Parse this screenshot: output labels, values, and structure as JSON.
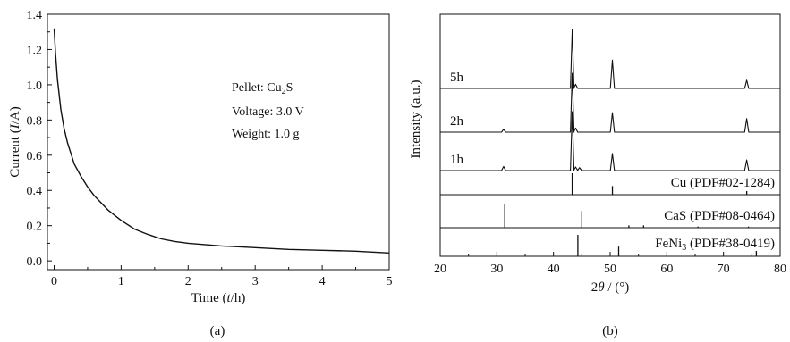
{
  "chart_data": [
    {
      "panel": "(a)",
      "type": "line",
      "xlabel_parts": [
        "Time (",
        "t",
        "/h)"
      ],
      "ylabel_parts": [
        "Current (",
        "I",
        "/A)"
      ],
      "xlim": [
        -0.1,
        5
      ],
      "ylim": [
        -0.05,
        1.4
      ],
      "xticks": [
        0,
        1,
        2,
        3,
        4,
        5
      ],
      "yticks": [
        0.0,
        0.2,
        0.4,
        0.6,
        0.8,
        1.0,
        1.2,
        1.4
      ],
      "ytick_labels": [
        "0.0",
        "0.2",
        "0.4",
        "0.6",
        "0.8",
        "1.0",
        "1.2",
        "1.4"
      ],
      "annotation": {
        "pellet_prefix": "Pellet: Cu",
        "pellet_sub": "2",
        "pellet_suffix": "S",
        "voltage": "Voltage: 3.0 V",
        "weight": "Weight: 1.0 g"
      },
      "series": [
        {
          "x": [
            0.0,
            0.02,
            0.05,
            0.1,
            0.15,
            0.2,
            0.3,
            0.4,
            0.5,
            0.6,
            0.7,
            0.8,
            0.9,
            1.0,
            1.2,
            1.4,
            1.6,
            1.8,
            2.0,
            2.5,
            3.0,
            3.5,
            4.0,
            4.5,
            5.0
          ],
          "y": [
            1.32,
            1.18,
            1.03,
            0.86,
            0.75,
            0.67,
            0.55,
            0.48,
            0.42,
            0.37,
            0.33,
            0.29,
            0.26,
            0.23,
            0.18,
            0.15,
            0.125,
            0.11,
            0.1,
            0.085,
            0.075,
            0.065,
            0.06,
            0.055,
            0.045
          ]
        }
      ]
    },
    {
      "panel": "(b)",
      "type": "line",
      "xlabel_parts": [
        "2",
        "θ",
        " / (°)"
      ],
      "ylabel": "Intensity (a.u.)",
      "xlim": [
        20,
        80
      ],
      "xticks": [
        20,
        30,
        40,
        50,
        60,
        70,
        80
      ],
      "series": [
        {
          "name": "5h",
          "peaks": [
            {
              "x": 43.3,
              "h": 1.0
            },
            {
              "x": 43.9,
              "h": 0.07
            },
            {
              "x": 50.4,
              "h": 0.48
            },
            {
              "x": 74.1,
              "h": 0.14
            }
          ]
        },
        {
          "name": "2h",
          "peaks": [
            {
              "x": 31.2,
              "h": 0.05
            },
            {
              "x": 43.3,
              "h": 1.0
            },
            {
              "x": 43.9,
              "h": 0.07
            },
            {
              "x": 50.4,
              "h": 0.33
            },
            {
              "x": 74.1,
              "h": 0.23
            }
          ]
        },
        {
          "name": "1h",
          "peaks": [
            {
              "x": 31.2,
              "h": 0.07
            },
            {
              "x": 43.3,
              "h": 1.0
            },
            {
              "x": 43.9,
              "h": 0.06
            },
            {
              "x": 44.6,
              "h": 0.05
            },
            {
              "x": 50.4,
              "h": 0.29
            },
            {
              "x": 74.1,
              "h": 0.18
            }
          ]
        }
      ],
      "references": [
        {
          "label_parts": [
            "Cu  (PDF#02-1284)"
          ],
          "lines": [
            {
              "x": 43.3,
              "h": 1.0
            },
            {
              "x": 50.4,
              "h": 0.4
            },
            {
              "x": 74.1,
              "h": 0.17
            }
          ]
        },
        {
          "label_parts": [
            "CaS  (PDF#08-0464)"
          ],
          "lines": [
            {
              "x": 31.4,
              "h": 1.0
            },
            {
              "x": 45.0,
              "h": 0.72
            },
            {
              "x": 53.3,
              "h": 0.1
            },
            {
              "x": 55.9,
              "h": 0.1
            },
            {
              "x": 65.5,
              "h": 0.05
            },
            {
              "x": 74.4,
              "h": 0.05
            }
          ]
        },
        {
          "label_parts": [
            "FeNi",
            "3",
            "  (PDF#38-0419)"
          ],
          "lines": [
            {
              "x": 44.3,
              "h": 1.0
            },
            {
              "x": 51.5,
              "h": 0.45
            },
            {
              "x": 75.8,
              "h": 0.25
            }
          ]
        }
      ]
    }
  ],
  "subcaptions": [
    "(a)",
    "(b)"
  ]
}
